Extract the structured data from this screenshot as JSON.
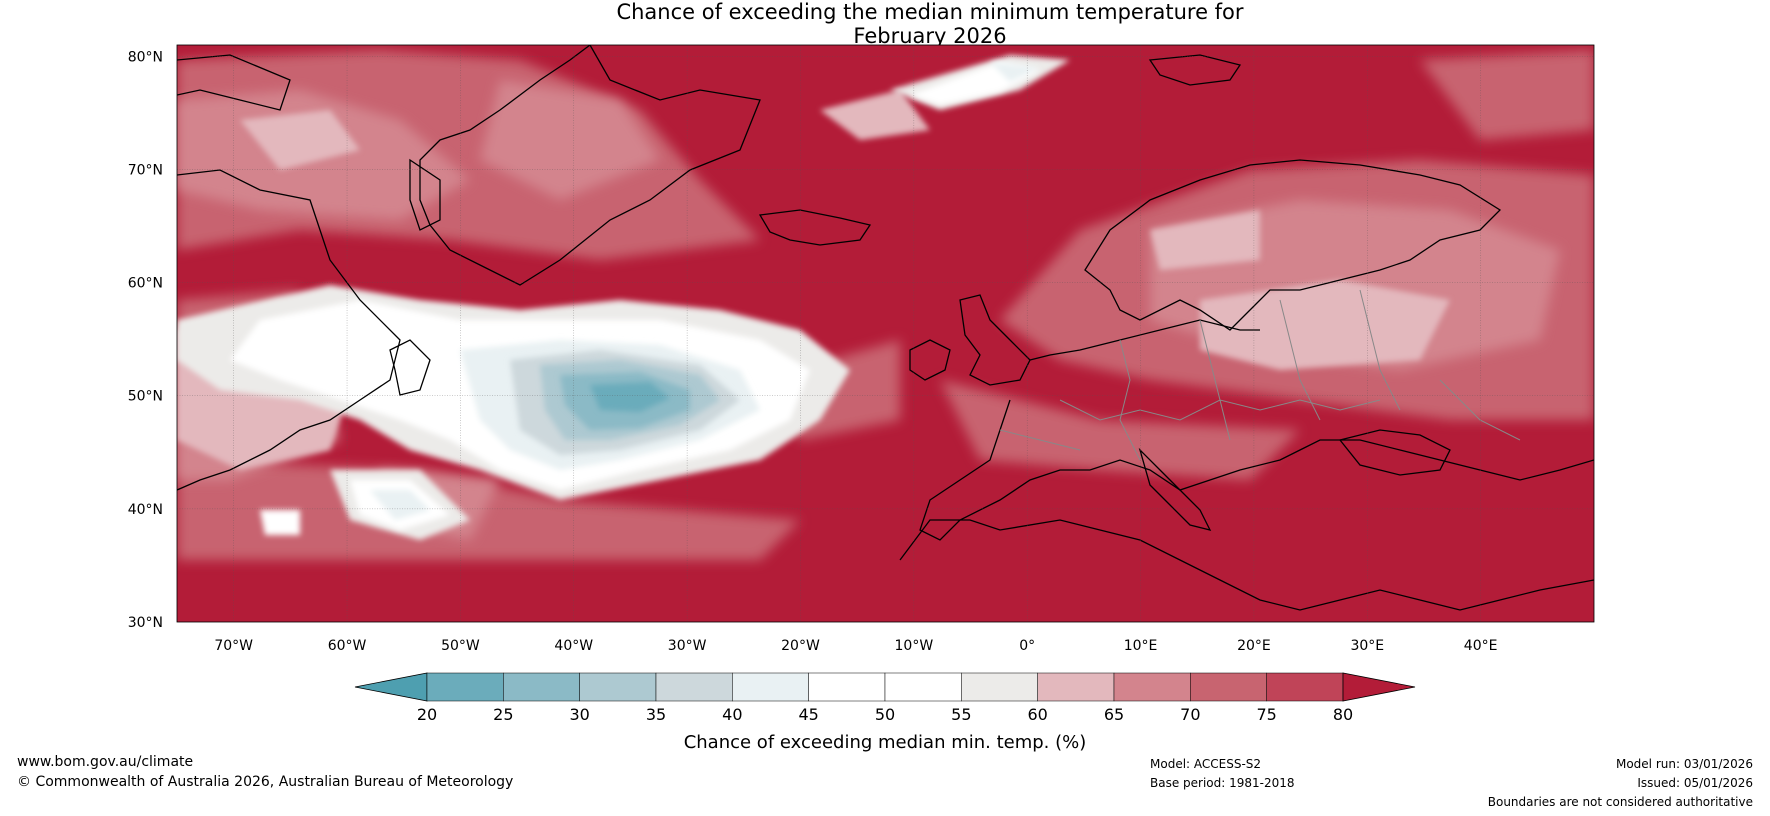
{
  "title_line1": "Chance of exceeding the median minimum temperature for",
  "title_line2": "February 2026",
  "map": {
    "lat_ticks": [
      "80°N",
      "70°N",
      "60°N",
      "50°N",
      "40°N",
      "30°N"
    ],
    "lon_ticks": [
      "70°W",
      "60°W",
      "50°W",
      "40°W",
      "30°W",
      "20°W",
      "10°W",
      "0°",
      "10°E",
      "20°E",
      "30°E",
      "40°E"
    ]
  },
  "colorbar": {
    "label": "Chance of exceeding median min. temp. (%)",
    "ticks": [
      "20",
      "25",
      "30",
      "35",
      "40",
      "45",
      "50",
      "55",
      "60",
      "65",
      "70",
      "75",
      "80"
    ],
    "colors": [
      "#4e9fb0",
      "#6bacbb",
      "#8bbac6",
      "#adc9d1",
      "#cdd8dc",
      "#e9f1f3",
      "#ffffff",
      "#ffffff",
      "#ecebe9",
      "#e3b8bd",
      "#d3848d",
      "#c86470",
      "#c04458",
      "#b31c38"
    ]
  },
  "footer": {
    "website": "www.bom.gov.au/climate",
    "copyright": "© Commonwealth of Australia 2026, Australian Bureau of Meteorology",
    "model": "Model: ACCESS-S2",
    "base_period": "Base period: 1981-2018",
    "model_run": "Model run: 03/01/2026",
    "issued": "Issued: 05/01/2026",
    "boundaries": "Boundaries are not considered authoritative"
  }
}
